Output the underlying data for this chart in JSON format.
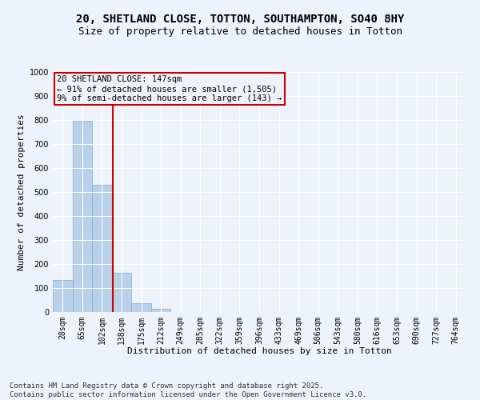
{
  "title1": "20, SHETLAND CLOSE, TOTTON, SOUTHAMPTON, SO40 8HY",
  "title2": "Size of property relative to detached houses in Totton",
  "xlabel": "Distribution of detached houses by size in Totton",
  "ylabel": "Number of detached properties",
  "categories": [
    "28sqm",
    "65sqm",
    "102sqm",
    "138sqm",
    "175sqm",
    "212sqm",
    "249sqm",
    "285sqm",
    "322sqm",
    "359sqm",
    "396sqm",
    "433sqm",
    "469sqm",
    "506sqm",
    "543sqm",
    "580sqm",
    "616sqm",
    "653sqm",
    "690sqm",
    "727sqm",
    "764sqm"
  ],
  "values": [
    135,
    797,
    530,
    162,
    38,
    12,
    0,
    0,
    0,
    0,
    0,
    0,
    0,
    0,
    0,
    0,
    0,
    0,
    0,
    0,
    0
  ],
  "bar_color": "#b8d0e8",
  "bar_edge_color": "#7aafd4",
  "vline_color": "#cc0000",
  "annotation_box_text": "20 SHETLAND CLOSE: 147sqm\n← 91% of detached houses are smaller (1,505)\n9% of semi-detached houses are larger (143) →",
  "annotation_box_color": "#cc0000",
  "ylim": [
    0,
    1000
  ],
  "yticks": [
    0,
    100,
    200,
    300,
    400,
    500,
    600,
    700,
    800,
    900,
    1000
  ],
  "background_color": "#eef2fa",
  "grid_color": "#ffffff",
  "footer": "Contains HM Land Registry data © Crown copyright and database right 2025.\nContains public sector information licensed under the Open Government Licence v3.0.",
  "title1_fontsize": 10,
  "title2_fontsize": 9,
  "xlabel_fontsize": 8,
  "ylabel_fontsize": 8,
  "tick_fontsize": 7,
  "footer_fontsize": 6.5,
  "annot_fontsize": 7.5
}
